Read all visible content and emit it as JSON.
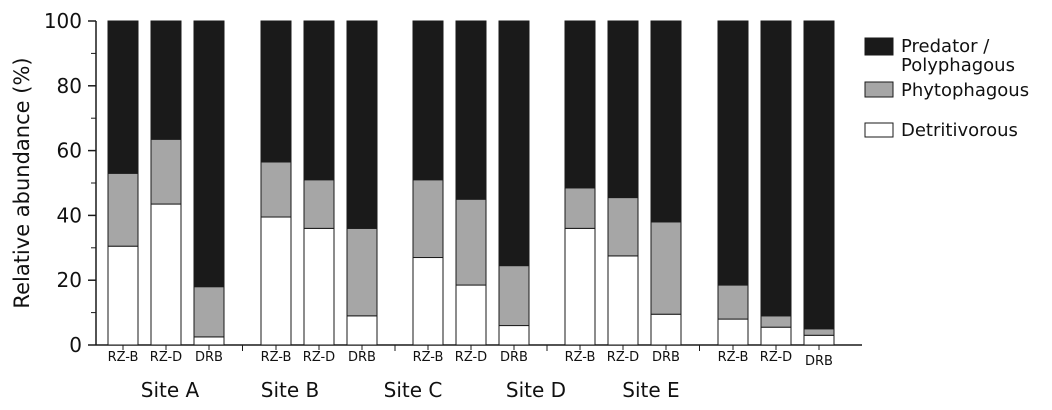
{
  "colors": {
    "predator": "#1a1a1a",
    "phytophagous": "#a6a6a6",
    "detritivorous": "#ffffff",
    "stroke": "#1a1a1a"
  },
  "chart_data": {
    "type": "bar",
    "stacked": true,
    "ylabel": "Relative abundance (%)",
    "ylim": [
      0,
      100
    ],
    "yticks": [
      0,
      20,
      40,
      60,
      80,
      100
    ],
    "legend_position": "right",
    "groups": [
      {
        "name": "Site A",
        "categories": [
          "RZ-B",
          "RZ-D",
          "DRB"
        ]
      },
      {
        "name": "Site B",
        "categories": [
          "RZ-B",
          "RZ-D",
          "DRB"
        ]
      },
      {
        "name": "Site C",
        "categories": [
          "RZ-B",
          "RZ-D",
          "DRB"
        ]
      },
      {
        "name": "Site D",
        "categories": [
          "RZ-B",
          "RZ-D",
          "DRB"
        ]
      },
      {
        "name": "Site E",
        "categories": [
          "RZ-B",
          "RZ-D",
          "DRB"
        ]
      }
    ],
    "series": [
      {
        "name": "Detritivorous",
        "values": [
          30.5,
          43.5,
          2.5,
          39.5,
          36,
          9,
          27,
          18.5,
          6,
          36,
          27.5,
          9.5,
          8,
          5.5,
          3
        ]
      },
      {
        "name": "Phytophagous",
        "values": [
          22.5,
          20,
          15.5,
          17,
          15,
          27,
          24,
          26.5,
          18.5,
          12.5,
          18,
          28.5,
          10.5,
          3.5,
          2
        ]
      },
      {
        "name": "Predator / Polyphagous",
        "values": [
          47,
          36.5,
          82,
          43.5,
          49,
          64,
          49,
          55,
          75.5,
          51.5,
          54.5,
          62,
          81.5,
          91,
          95
        ]
      }
    ],
    "legend": [
      {
        "line1": "Predator /",
        "line2": "Polyphagous",
        "series": "Predator / Polyphagous"
      },
      {
        "line1": "Phytophagous",
        "line2": "",
        "series": "Phytophagous"
      },
      {
        "line1": "Detritivorous",
        "line2": "",
        "series": "Detritivorous"
      }
    ]
  }
}
